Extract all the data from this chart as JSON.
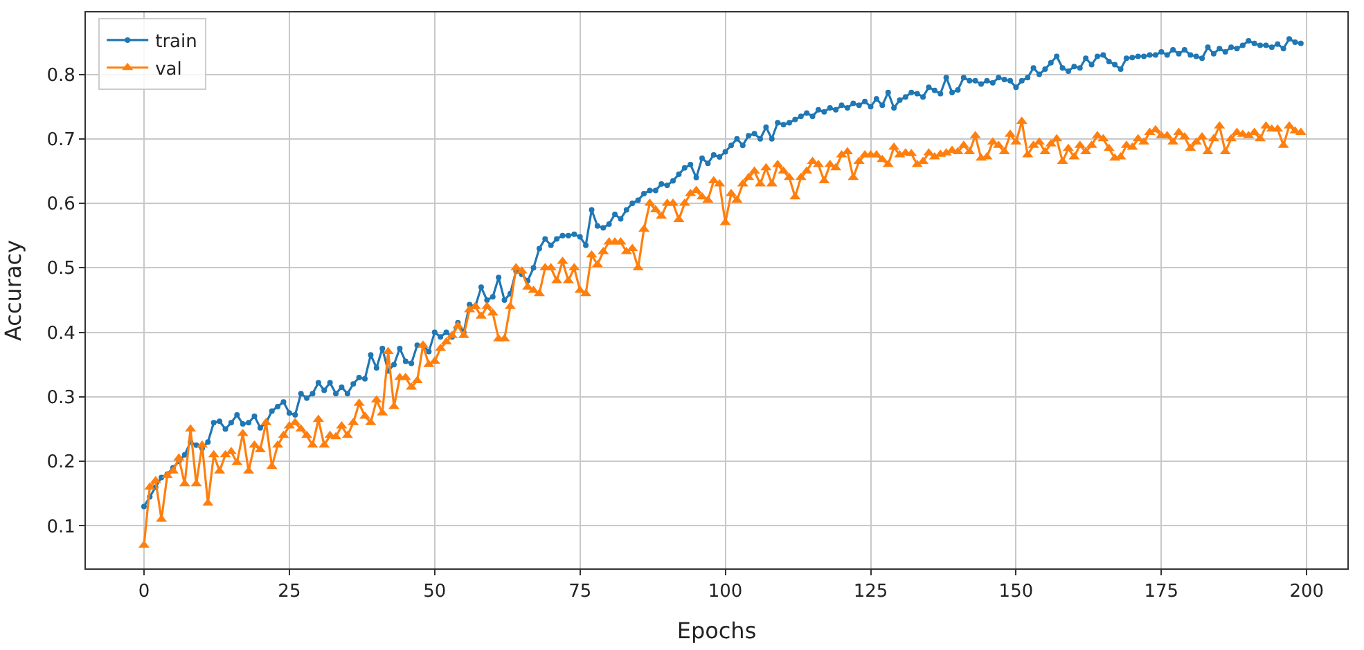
{
  "chart_data": {
    "type": "line",
    "xlabel": "Epochs",
    "ylabel": "Accuracy",
    "xlim": [
      -10,
      207
    ],
    "xticks": [
      0,
      25,
      50,
      75,
      100,
      125,
      150,
      175,
      200
    ],
    "ylim": [
      0.034,
      0.896
    ],
    "yticks": [
      0.1,
      0.2,
      0.3,
      0.4,
      0.5,
      0.6,
      0.7,
      0.8
    ],
    "grid": true,
    "legend": "top left",
    "x": [
      0,
      1,
      2,
      3,
      4,
      5,
      6,
      7,
      8,
      9,
      10,
      11,
      12,
      13,
      14,
      15,
      16,
      17,
      18,
      19,
      20,
      21,
      22,
      23,
      24,
      25,
      26,
      27,
      28,
      29,
      30,
      31,
      32,
      33,
      34,
      35,
      36,
      37,
      38,
      39,
      40,
      41,
      42,
      43,
      44,
      45,
      46,
      47,
      48,
      49,
      50,
      51,
      52,
      53,
      54,
      55,
      56,
      57,
      58,
      59,
      60,
      61,
      62,
      63,
      64,
      65,
      66,
      67,
      68,
      69,
      70,
      71,
      72,
      73,
      74,
      75,
      76,
      77,
      78,
      79,
      80,
      81,
      82,
      83,
      84,
      85,
      86,
      87,
      88,
      89,
      90,
      91,
      92,
      93,
      94,
      95,
      96,
      97,
      98,
      99,
      100,
      101,
      102,
      103,
      104,
      105,
      106,
      107,
      108,
      109,
      110,
      111,
      112,
      113,
      114,
      115,
      116,
      117,
      118,
      119,
      120,
      121,
      122,
      123,
      124,
      125,
      126,
      127,
      128,
      129,
      130,
      131,
      132,
      133,
      134,
      135,
      136,
      137,
      138,
      139,
      140,
      141,
      142,
      143,
      144,
      145,
      146,
      147,
      148,
      149,
      150,
      151,
      152,
      153,
      154,
      155,
      156,
      157,
      158,
      159,
      160,
      161,
      162,
      163,
      164,
      165,
      166,
      167,
      168,
      169,
      170,
      171,
      172,
      173,
      174,
      175,
      176,
      177,
      178,
      179,
      180,
      181,
      182,
      183,
      184,
      185,
      186,
      187,
      188,
      189,
      190,
      191,
      192,
      193,
      194,
      195,
      196,
      197,
      198,
      199
    ],
    "series": [
      {
        "name": "train",
        "color": "#1f77b4",
        "marker": "circle",
        "values": [
          0.13,
          0.145,
          0.16,
          0.175,
          0.18,
          0.19,
          0.2,
          0.21,
          0.23,
          0.225,
          0.22,
          0.23,
          0.26,
          0.262,
          0.25,
          0.26,
          0.272,
          0.258,
          0.26,
          0.27,
          0.252,
          0.26,
          0.278,
          0.285,
          0.292,
          0.275,
          0.272,
          0.305,
          0.298,
          0.305,
          0.322,
          0.31,
          0.322,
          0.305,
          0.315,
          0.305,
          0.32,
          0.33,
          0.328,
          0.365,
          0.345,
          0.375,
          0.34,
          0.35,
          0.375,
          0.355,
          0.352,
          0.38,
          0.38,
          0.37,
          0.4,
          0.393,
          0.4,
          0.393,
          0.415,
          0.4,
          0.443,
          0.44,
          0.47,
          0.45,
          0.455,
          0.485,
          0.45,
          0.46,
          0.495,
          0.49,
          0.48,
          0.5,
          0.53,
          0.545,
          0.535,
          0.545,
          0.55,
          0.55,
          0.552,
          0.548,
          0.535,
          0.59,
          0.565,
          0.562,
          0.568,
          0.583,
          0.576,
          0.59,
          0.6,
          0.605,
          0.615,
          0.62,
          0.62,
          0.63,
          0.628,
          0.635,
          0.645,
          0.655,
          0.66,
          0.64,
          0.67,
          0.662,
          0.675,
          0.672,
          0.68,
          0.69,
          0.7,
          0.69,
          0.705,
          0.708,
          0.7,
          0.718,
          0.7,
          0.725,
          0.722,
          0.725,
          0.73,
          0.735,
          0.74,
          0.735,
          0.745,
          0.742,
          0.748,
          0.745,
          0.752,
          0.748,
          0.755,
          0.752,
          0.758,
          0.75,
          0.762,
          0.752,
          0.772,
          0.748,
          0.76,
          0.765,
          0.772,
          0.77,
          0.765,
          0.78,
          0.775,
          0.77,
          0.795,
          0.772,
          0.776,
          0.795,
          0.79,
          0.79,
          0.785,
          0.79,
          0.787,
          0.795,
          0.792,
          0.79,
          0.78,
          0.79,
          0.795,
          0.81,
          0.8,
          0.808,
          0.818,
          0.828,
          0.81,
          0.805,
          0.812,
          0.81,
          0.825,
          0.815,
          0.828,
          0.83,
          0.82,
          0.815,
          0.808,
          0.825,
          0.826,
          0.828,
          0.828,
          0.83,
          0.83,
          0.835,
          0.83,
          0.838,
          0.832,
          0.838,
          0.83,
          0.828,
          0.825,
          0.842,
          0.832,
          0.84,
          0.835,
          0.842,
          0.84,
          0.845,
          0.852,
          0.848,
          0.845,
          0.845,
          0.842,
          0.847,
          0.84,
          0.855,
          0.85,
          0.848
        ]
      },
      {
        "name": "val",
        "color": "#ff7f0e",
        "marker": "triangle",
        "values": [
          0.07,
          0.16,
          0.17,
          0.11,
          0.178,
          0.185,
          0.205,
          0.165,
          0.25,
          0.165,
          0.225,
          0.135,
          0.21,
          0.185,
          0.21,
          0.215,
          0.198,
          0.243,
          0.185,
          0.225,
          0.218,
          0.26,
          0.192,
          0.225,
          0.24,
          0.255,
          0.26,
          0.25,
          0.24,
          0.225,
          0.265,
          0.225,
          0.24,
          0.238,
          0.255,
          0.24,
          0.26,
          0.29,
          0.27,
          0.26,
          0.295,
          0.275,
          0.37,
          0.285,
          0.33,
          0.33,
          0.315,
          0.325,
          0.38,
          0.35,
          0.355,
          0.375,
          0.385,
          0.395,
          0.41,
          0.395,
          0.435,
          0.44,
          0.425,
          0.44,
          0.43,
          0.39,
          0.39,
          0.44,
          0.5,
          0.495,
          0.47,
          0.465,
          0.46,
          0.5,
          0.5,
          0.48,
          0.51,
          0.48,
          0.5,
          0.465,
          0.46,
          0.52,
          0.505,
          0.525,
          0.54,
          0.54,
          0.54,
          0.525,
          0.53,
          0.5,
          0.56,
          0.6,
          0.59,
          0.58,
          0.6,
          0.6,
          0.575,
          0.6,
          0.615,
          0.62,
          0.61,
          0.605,
          0.635,
          0.63,
          0.57,
          0.615,
          0.605,
          0.63,
          0.64,
          0.65,
          0.63,
          0.655,
          0.63,
          0.66,
          0.65,
          0.64,
          0.61,
          0.64,
          0.65,
          0.665,
          0.66,
          0.635,
          0.66,
          0.655,
          0.675,
          0.68,
          0.64,
          0.665,
          0.675,
          0.675,
          0.675,
          0.668,
          0.66,
          0.687,
          0.675,
          0.678,
          0.677,
          0.66,
          0.665,
          0.678,
          0.672,
          0.676,
          0.678,
          0.682,
          0.68,
          0.69,
          0.68,
          0.705,
          0.67,
          0.672,
          0.695,
          0.69,
          0.68,
          0.707,
          0.695,
          0.727,
          0.675,
          0.69,
          0.695,
          0.68,
          0.692,
          0.7,
          0.665,
          0.685,
          0.672,
          0.69,
          0.68,
          0.69,
          0.705,
          0.7,
          0.685,
          0.67,
          0.672,
          0.69,
          0.687,
          0.7,
          0.695,
          0.71,
          0.714,
          0.705,
          0.705,
          0.695,
          0.71,
          0.703,
          0.685,
          0.695,
          0.703,
          0.68,
          0.7,
          0.72,
          0.68,
          0.7,
          0.71,
          0.707,
          0.705,
          0.71,
          0.7,
          0.72,
          0.715,
          0.715,
          0.69,
          0.72,
          0.712,
          0.71
        ]
      }
    ]
  }
}
